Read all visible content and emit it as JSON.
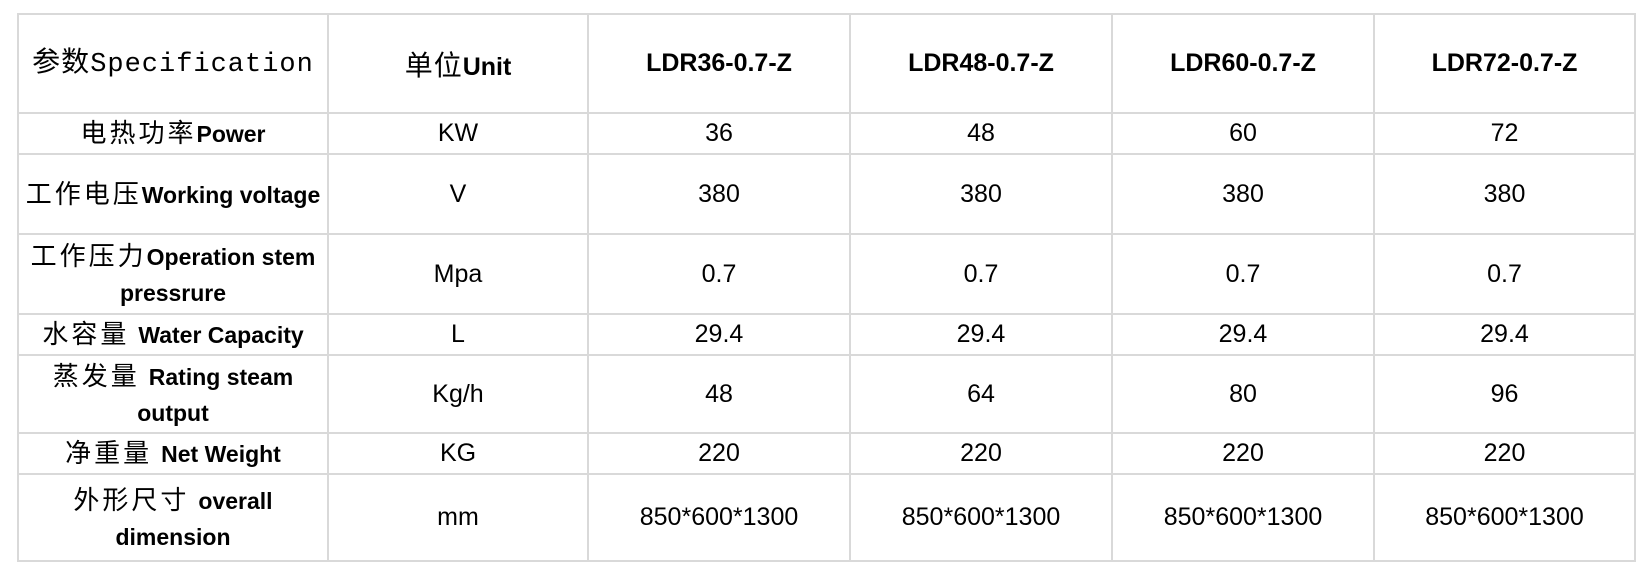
{
  "table": {
    "colors": {
      "label_column_bg": "#f0f0f0",
      "cell_bg": "#ffffff",
      "border": "#d9d9d9",
      "text": "#000000"
    },
    "header": {
      "spec_cn": "参数",
      "spec_en": "Specification",
      "unit_cn": "单位",
      "unit_en": "Unit",
      "models": [
        "LDR36-0.7-Z",
        "LDR48-0.7-Z",
        "LDR60-0.7-Z",
        "LDR72-0.7-Z"
      ]
    },
    "rows": [
      {
        "param_cn": "电热功率",
        "param_en": "Power",
        "unit": "KW",
        "values": [
          "36",
          "48",
          "60",
          "72"
        ]
      },
      {
        "param_cn": "工作电压",
        "param_en": "Working voltage",
        "unit": "V",
        "values": [
          "380",
          "380",
          "380",
          "380"
        ]
      },
      {
        "param_cn": "工作压力",
        "param_en": "Operation stem pressrure",
        "unit": "Mpa",
        "values": [
          "0.7",
          "0.7",
          "0.7",
          "0.7"
        ]
      },
      {
        "param_cn": "水容量",
        "param_en": "Water Capacity",
        "unit": "L",
        "values": [
          "29.4",
          "29.4",
          "29.4",
          "29.4"
        ]
      },
      {
        "param_cn": "蒸发量",
        "param_en": "Rating steam output",
        "unit": "Kg/h",
        "values": [
          "48",
          "64",
          "80",
          "96"
        ]
      },
      {
        "param_cn": "净重量",
        "param_en": "Net Weight",
        "unit": "KG",
        "values": [
          "220",
          "220",
          "220",
          "220"
        ]
      },
      {
        "param_cn": "外形尺寸",
        "param_en": "overall dimension",
        "unit": "mm",
        "values": [
          "850*600*1300",
          "850*600*1300",
          "850*600*1300",
          "850*600*1300"
        ]
      }
    ]
  }
}
